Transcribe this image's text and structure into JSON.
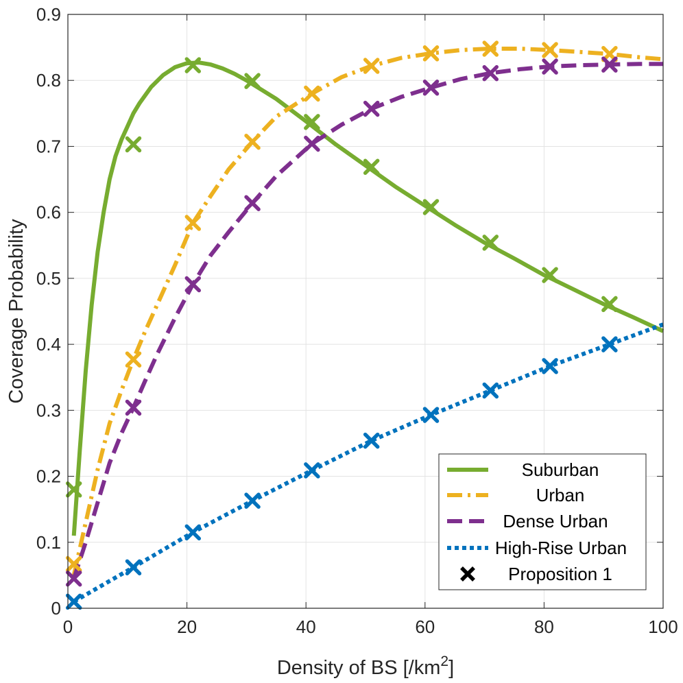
{
  "chart_data": {
    "type": "line",
    "title": "",
    "xlabel": "Density of BS [/km",
    "xlabel_superscript": "2",
    "xlabel_suffix": "]",
    "ylabel": "Coverage Probability",
    "xlim": [
      0,
      100
    ],
    "ylim": [
      0,
      0.9
    ],
    "xticks": [
      0,
      20,
      40,
      60,
      80,
      100
    ],
    "xtick_labels": [
      "0",
      "20",
      "40",
      "60",
      "80",
      "100"
    ],
    "yticks": [
      0,
      0.1,
      0.2,
      0.3,
      0.4,
      0.5,
      0.6,
      0.7,
      0.8,
      0.9
    ],
    "ytick_labels": [
      "0",
      "0.1",
      "0.2",
      "0.3",
      "0.4",
      "0.5",
      "0.6",
      "0.7",
      "0.8",
      "0.9"
    ],
    "grid": true,
    "legend_position": "bottom-right",
    "series": [
      {
        "name": "Suburban",
        "color": "#77AC30",
        "style": "solid",
        "curve_x": [
          1,
          2,
          3,
          4,
          5,
          6,
          7,
          8,
          9,
          10,
          11,
          12,
          14,
          16,
          18,
          20,
          22,
          24,
          26,
          28,
          30,
          35,
          40,
          45,
          50,
          55,
          60,
          65,
          70,
          75,
          80,
          85,
          90,
          95,
          100
        ],
        "curve_y": [
          0.11,
          0.24,
          0.36,
          0.46,
          0.54,
          0.6,
          0.65,
          0.685,
          0.71,
          0.73,
          0.75,
          0.765,
          0.79,
          0.808,
          0.82,
          0.826,
          0.827,
          0.824,
          0.818,
          0.81,
          0.8,
          0.772,
          0.738,
          0.703,
          0.671,
          0.639,
          0.61,
          0.581,
          0.554,
          0.53,
          0.505,
          0.483,
          0.461,
          0.441,
          0.42
        ],
        "marker_x": [
          1,
          11,
          21,
          31,
          41,
          51,
          61,
          71,
          81,
          91
        ],
        "marker_y": [
          0.18,
          0.703,
          0.823,
          0.799,
          0.737,
          0.669,
          0.608,
          0.554,
          0.505,
          0.461
        ]
      },
      {
        "name": "Urban",
        "color": "#EDB120",
        "style": "dashdot",
        "curve_x": [
          1,
          3,
          5,
          7,
          9,
          11,
          13,
          15,
          18,
          21,
          24,
          27,
          31,
          35,
          41,
          46,
          51,
          56,
          61,
          66,
          71,
          76,
          81,
          86,
          91,
          96,
          100
        ],
        "curve_y": [
          0.05,
          0.13,
          0.21,
          0.28,
          0.33,
          0.377,
          0.42,
          0.46,
          0.52,
          0.584,
          0.625,
          0.665,
          0.707,
          0.745,
          0.78,
          0.805,
          0.822,
          0.834,
          0.841,
          0.846,
          0.848,
          0.848,
          0.846,
          0.843,
          0.84,
          0.835,
          0.832
        ],
        "marker_x": [
          1,
          11,
          21,
          31,
          41,
          51,
          61,
          71,
          81,
          91
        ],
        "marker_y": [
          0.067,
          0.377,
          0.584,
          0.707,
          0.78,
          0.822,
          0.841,
          0.848,
          0.846,
          0.84
        ]
      },
      {
        "name": "Dense Urban",
        "color": "#7E2F8E",
        "style": "dashed",
        "curve_x": [
          1,
          3,
          5,
          7,
          9,
          11,
          13,
          15,
          18,
          21,
          24,
          27,
          31,
          35,
          41,
          46,
          51,
          56,
          61,
          66,
          71,
          76,
          81,
          86,
          91,
          96,
          100
        ],
        "curve_y": [
          0.045,
          0.1,
          0.16,
          0.22,
          0.265,
          0.304,
          0.345,
          0.385,
          0.44,
          0.491,
          0.535,
          0.57,
          0.614,
          0.655,
          0.704,
          0.733,
          0.757,
          0.775,
          0.789,
          0.802,
          0.811,
          0.817,
          0.821,
          0.823,
          0.824,
          0.825,
          0.825
        ],
        "marker_x": [
          1,
          11,
          21,
          31,
          41,
          51,
          61,
          71,
          81,
          91
        ],
        "marker_y": [
          0.045,
          0.304,
          0.491,
          0.614,
          0.704,
          0.757,
          0.789,
          0.811,
          0.821,
          0.824
        ]
      },
      {
        "name": "High-Rise Urban",
        "color": "#0072BD",
        "style": "dotted",
        "curve_x": [
          1,
          11,
          21,
          31,
          41,
          51,
          61,
          71,
          81,
          91,
          100
        ],
        "curve_y": [
          0.01,
          0.062,
          0.115,
          0.163,
          0.209,
          0.254,
          0.293,
          0.33,
          0.367,
          0.4,
          0.43
        ],
        "marker_x": [
          1,
          11,
          21,
          31,
          41,
          51,
          61,
          71,
          81,
          91
        ],
        "marker_y": [
          0.01,
          0.062,
          0.115,
          0.163,
          0.209,
          0.254,
          0.293,
          0.33,
          0.367,
          0.4
        ]
      }
    ],
    "marker_legend": {
      "name": "Proposition 1",
      "color": "#000000",
      "marker": "x"
    }
  }
}
